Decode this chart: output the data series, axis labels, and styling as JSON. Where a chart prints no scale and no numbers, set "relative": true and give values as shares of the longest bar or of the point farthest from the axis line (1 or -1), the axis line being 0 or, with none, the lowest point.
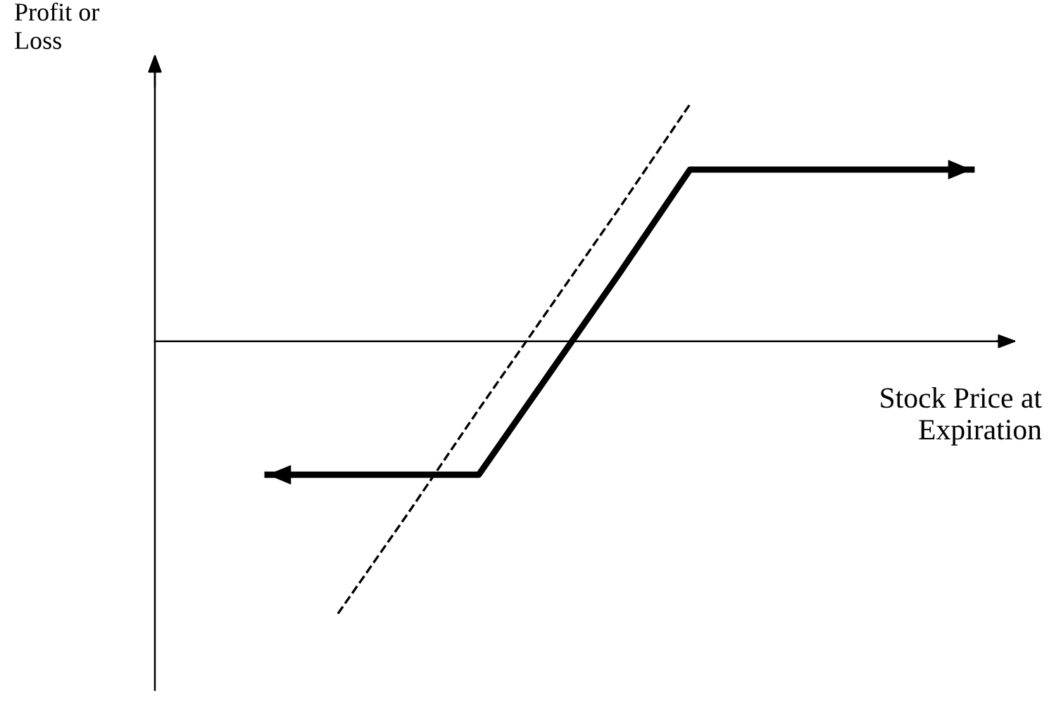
{
  "chart_data": {
    "type": "line",
    "relative": true,
    "xlabel": "Stock Price at\nExpiration",
    "annotations": [
      "Profit or\nLoss"
    ],
    "categories": [
      null,
      null,
      null,
      null,
      null,
      null,
      null,
      null,
      null,
      null,
      null
    ],
    "series": [
      {
        "color": "#000000",
        "line_style": "solid",
        "values": [
          -0.49,
          -0.49,
          -0.49,
          -0.49,
          -0.12,
          0.25,
          0.63,
          0.63,
          0.63,
          0.63,
          0.63
        ]
      },
      {
        "color": "#000000",
        "line_style": "dashed",
        "values": [
          null,
          -1,
          -0.63,
          -0.25,
          0.12,
          0.49,
          0.87,
          null,
          null,
          null,
          null
        ]
      }
    ]
  }
}
